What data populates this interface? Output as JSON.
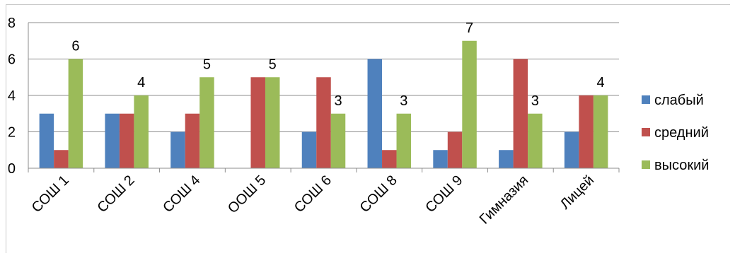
{
  "chart_data": {
    "type": "bar",
    "title": "",
    "xlabel": "",
    "ylabel": "",
    "categories": [
      "СОШ 1",
      "СОШ 2",
      "СОШ 4",
      "ООШ 5",
      "СОШ 6",
      "СОШ 8",
      "СОШ 9",
      "Гимназия",
      "Лицей"
    ],
    "series": [
      {
        "name": "слабый",
        "color": "#4f81bd",
        "values": [
          3,
          3,
          2,
          0,
          2,
          6,
          1,
          1,
          2
        ]
      },
      {
        "name": "средний",
        "color": "#c0504d",
        "values": [
          1,
          3,
          3,
          5,
          5,
          1,
          2,
          6,
          4
        ]
      },
      {
        "name": "высокий",
        "color": "#9bbb59",
        "values": [
          6,
          4,
          5,
          5,
          3,
          3,
          7,
          3,
          4
        ]
      }
    ],
    "data_labels": {
      "series": "высокий",
      "values": [
        6,
        4,
        5,
        5,
        3,
        3,
        7,
        3,
        4
      ]
    },
    "ylim": [
      0,
      8
    ],
    "yticks": [
      0,
      2,
      4,
      6,
      8
    ],
    "grid": true,
    "legend_position": "right"
  }
}
